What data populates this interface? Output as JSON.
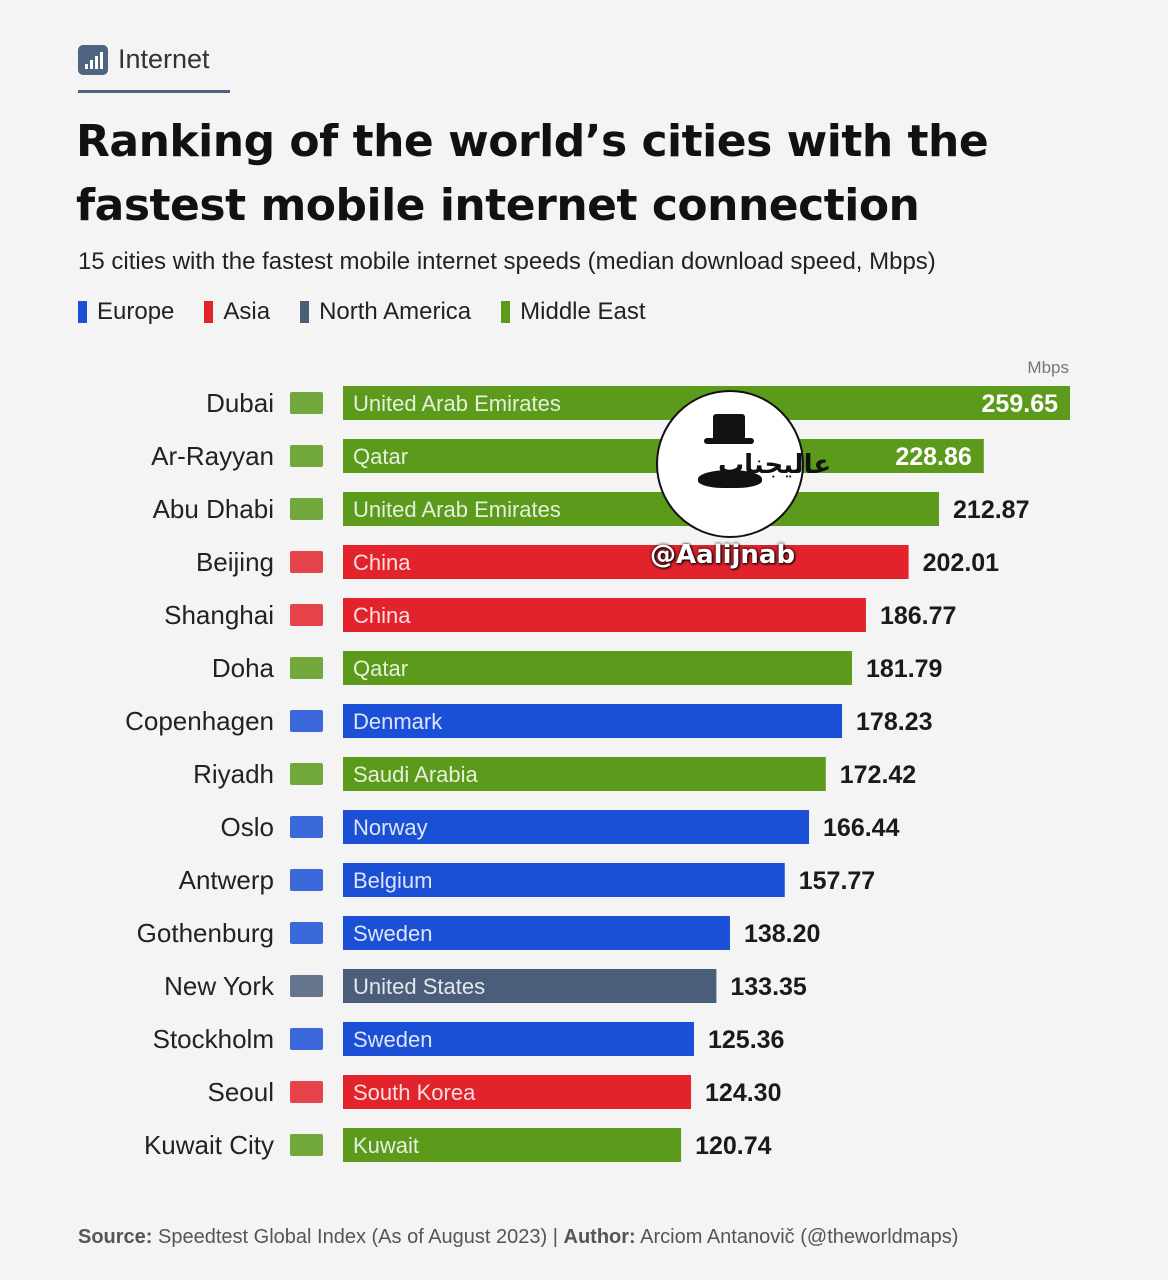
{
  "header": {
    "topic": "Internet",
    "title": "Ranking of the world’s cities with the fastest mobile internet connection",
    "subtitle": "15 cities with the fastest mobile internet speeds (median download speed, Mbps)"
  },
  "legend": [
    {
      "label": "Europe",
      "color": "#1a4fd6"
    },
    {
      "label": "Asia",
      "color": "#e2232b"
    },
    {
      "label": "North America",
      "color": "#4a5e7a"
    },
    {
      "label": "Middle East",
      "color": "#5b9a1a"
    }
  ],
  "watermark": {
    "text": "عالیجناب",
    "handle": "@Aalijnab"
  },
  "footer": {
    "source_label": "Source:",
    "source_text": "Speedtest Global Index (As of August 2023)",
    "separator": "|",
    "author_label": "Author:",
    "author_text": "Arciom Antanovič (@theworldmaps)"
  },
  "chart_data": {
    "type": "bar",
    "orientation": "horizontal",
    "unit_label": "Mbps",
    "categories": [
      "Dubai",
      "Ar-Rayyan",
      "Abu Dhabi",
      "Beijing",
      "Shanghai",
      "Doha",
      "Copenhagen",
      "Riyadh",
      "Oslo",
      "Antwerp",
      "Gothenburg",
      "New York",
      "Stockholm",
      "Seoul",
      "Kuwait City"
    ],
    "countries": [
      "United Arab Emirates",
      "Qatar",
      "United Arab Emirates",
      "China",
      "China",
      "Qatar",
      "Denmark",
      "Saudi Arabia",
      "Norway",
      "Belgium",
      "Sweden",
      "United States",
      "Sweden",
      "South Korea",
      "Kuwait"
    ],
    "regions": [
      "Middle East",
      "Middle East",
      "Middle East",
      "Asia",
      "Asia",
      "Middle East",
      "Europe",
      "Middle East",
      "Europe",
      "Europe",
      "Europe",
      "North America",
      "Europe",
      "Asia",
      "Middle East"
    ],
    "values": [
      259.65,
      228.86,
      212.87,
      202.01,
      186.77,
      181.79,
      178.23,
      172.42,
      166.44,
      157.77,
      138.2,
      133.35,
      125.36,
      124.3,
      120.74
    ],
    "value_labels": [
      "259.65",
      "228.86",
      "212.87",
      "202.01",
      "186.77",
      "181.79",
      "178.23",
      "172.42",
      "166.44",
      "157.77",
      "138.20",
      "133.35",
      "125.36",
      "124.30",
      "120.74"
    ],
    "xlim": [
      0,
      259.65
    ],
    "grid": false
  }
}
